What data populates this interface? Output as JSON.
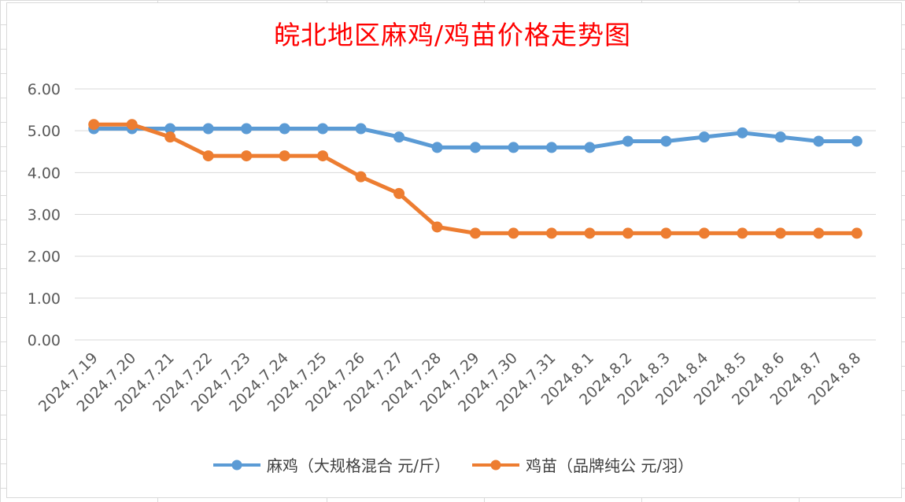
{
  "chart_data": {
    "type": "line",
    "title": "皖北地区麻鸡/鸡苗价格走势图",
    "categories": [
      "2024.7.19",
      "2024.7.20",
      "2024.7.21",
      "2024.7.22",
      "2024.7.23",
      "2024.7.24",
      "2024.7.25",
      "2024.7.26",
      "2024.7.27",
      "2024.7.28",
      "2024.7.29",
      "2024.7.30",
      "2024.7.31",
      "2024.8.1",
      "2024.8.2",
      "2024.8.3",
      "2024.8.4",
      "2024.8.5",
      "2024.8.6",
      "2024.8.7",
      "2024.8.8"
    ],
    "y_ticks": [
      "0.00",
      "1.00",
      "2.00",
      "3.00",
      "4.00",
      "5.00",
      "6.00"
    ],
    "ylim": [
      0,
      6
    ],
    "grid": true,
    "legend_position": "bottom",
    "series": [
      {
        "name": "麻鸡（大规格混合 元/斤）",
        "color": "#5b9bd5",
        "values": [
          5.05,
          5.05,
          5.05,
          5.05,
          5.05,
          5.05,
          5.05,
          5.05,
          4.85,
          4.6,
          4.6,
          4.6,
          4.6,
          4.6,
          4.75,
          4.75,
          4.85,
          4.95,
          4.85,
          4.75,
          4.75
        ]
      },
      {
        "name": "鸡苗（品牌纯公 元/羽）",
        "color": "#ed7d31",
        "values": [
          5.15,
          5.15,
          4.85,
          4.4,
          4.4,
          4.4,
          4.4,
          3.9,
          3.5,
          2.7,
          2.55,
          2.55,
          2.55,
          2.55,
          2.55,
          2.55,
          2.55,
          2.55,
          2.55,
          2.55,
          2.55
        ]
      }
    ]
  }
}
